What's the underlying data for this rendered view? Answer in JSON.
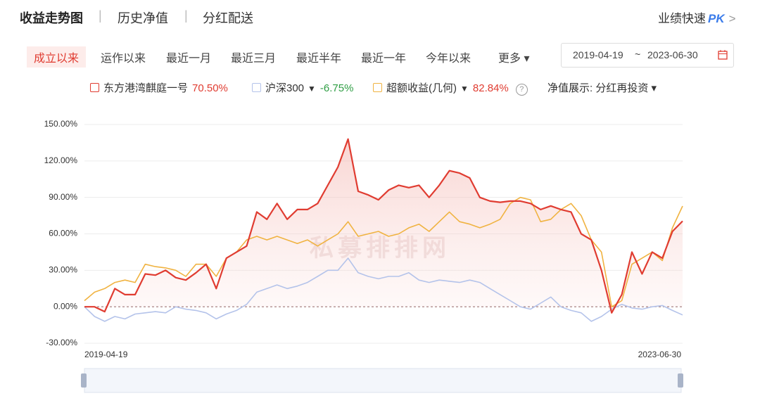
{
  "header": {
    "tabs": [
      "收益走势图",
      "历史净值",
      "分红配送"
    ],
    "right": "业绩快速",
    "pk": "PK"
  },
  "periods": [
    "成立以来",
    "运作以来",
    "最近一月",
    "最近三月",
    "最近半年",
    "最近一年",
    "今年以来",
    "更多"
  ],
  "date_range": {
    "start": "2019-04-19",
    "sep": "~",
    "end": "2023-06-30"
  },
  "nav_display": {
    "label": "净值展示:",
    "value": "分红再投资"
  },
  "watermark": "私募排排网",
  "chart_data": {
    "type": "line",
    "categories": [
      "2019-04-19",
      null,
      null,
      null,
      null,
      null,
      null,
      null,
      null,
      null,
      null,
      null,
      null,
      null,
      null,
      null,
      null,
      null,
      null,
      null,
      null,
      null,
      null,
      null,
      null,
      null,
      null,
      null,
      null,
      null,
      null,
      null,
      null,
      null,
      null,
      null,
      null,
      null,
      null,
      null,
      null,
      null,
      null,
      null,
      null,
      null,
      null,
      null,
      null,
      null,
      null,
      null,
      null,
      null,
      null,
      null,
      null,
      null,
      null,
      "2023-06-30"
    ],
    "series": [
      {
        "name": "东方港湾麒庭一号",
        "legend_value": "70.50%",
        "color": "#e03c31",
        "fill": true,
        "values": [
          0,
          0,
          -4,
          15,
          10,
          10,
          27,
          26,
          30,
          24,
          22,
          28,
          35,
          15,
          40,
          45,
          50,
          78,
          72,
          85,
          72,
          80,
          80,
          85,
          100,
          115,
          138,
          95,
          92,
          88,
          96,
          100,
          98,
          100,
          90,
          100,
          112,
          110,
          106,
          90,
          87,
          86,
          87,
          87,
          85,
          80,
          83,
          80,
          78,
          60,
          55,
          30,
          -5,
          10,
          45,
          27,
          45,
          40,
          62,
          70.5
        ]
      },
      {
        "name": "沪深300",
        "legend_value": "-6.75%",
        "color": "#b4c3ea",
        "dropdown": true,
        "values": [
          0,
          -8,
          -12,
          -8,
          -10,
          -6,
          -5,
          -4,
          -5,
          0,
          -2,
          -3,
          -5,
          -10,
          -6,
          -3,
          2,
          12,
          15,
          18,
          15,
          17,
          20,
          25,
          30,
          30,
          40,
          28,
          25,
          23,
          25,
          25,
          28,
          22,
          20,
          22,
          21,
          20,
          22,
          20,
          15,
          10,
          5,
          0,
          -2,
          3,
          8,
          0,
          -3,
          -5,
          -12,
          -8,
          -2,
          2,
          -1,
          -2,
          0,
          1,
          -3,
          -6.75
        ]
      },
      {
        "name": "超额收益(几何)",
        "legend_value": "82.84%",
        "color": "#f0b341",
        "dropdown": true,
        "values": [
          5,
          12,
          15,
          20,
          22,
          20,
          35,
          33,
          32,
          30,
          25,
          35,
          35,
          25,
          40,
          45,
          55,
          58,
          55,
          58,
          55,
          52,
          55,
          50,
          55,
          60,
          70,
          58,
          60,
          62,
          58,
          60,
          65,
          68,
          62,
          70,
          78,
          70,
          68,
          65,
          68,
          72,
          85,
          90,
          88,
          70,
          72,
          80,
          85,
          75,
          55,
          45,
          0,
          5,
          35,
          40,
          45,
          38,
          65,
          82.84
        ]
      }
    ],
    "ylim": [
      -30,
      150
    ],
    "yticks": [
      {
        "value": 150,
        "label": "150.00%"
      },
      {
        "value": 120,
        "label": "120.00%"
      },
      {
        "value": 90,
        "label": "90.00%"
      },
      {
        "value": 60,
        "label": "60.00%"
      },
      {
        "value": 30,
        "label": "30.00%"
      },
      {
        "value": 0,
        "label": "0.00%"
      },
      {
        "value": -30,
        "label": "-30.00%"
      }
    ],
    "grid": true
  }
}
